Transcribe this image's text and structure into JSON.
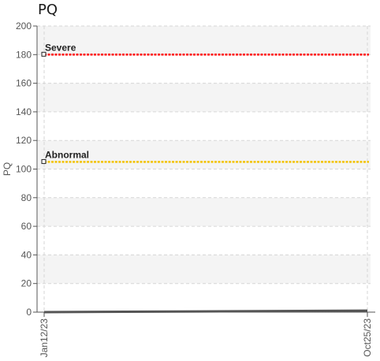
{
  "chart_data": {
    "type": "line",
    "title": "PQ",
    "ylabel": "PQ",
    "xlabel": "",
    "x_ticks": [
      "Jan12/23",
      "Oct25/23"
    ],
    "y_ticks": [
      0,
      20,
      40,
      60,
      80,
      100,
      120,
      140,
      160,
      180,
      200
    ],
    "ylim": [
      0,
      200
    ],
    "grid": true,
    "series": [
      {
        "values": [
          {
            "x": "Jan12/23",
            "y": 0
          },
          {
            "x": "Oct25/23",
            "y": 1
          }
        ],
        "color": "#555555"
      }
    ],
    "thresholds": [
      {
        "label": "Severe",
        "value": 180,
        "color": "#ff0000"
      },
      {
        "label": "Abnormal",
        "value": 105,
        "color": "#f2c200"
      }
    ]
  }
}
